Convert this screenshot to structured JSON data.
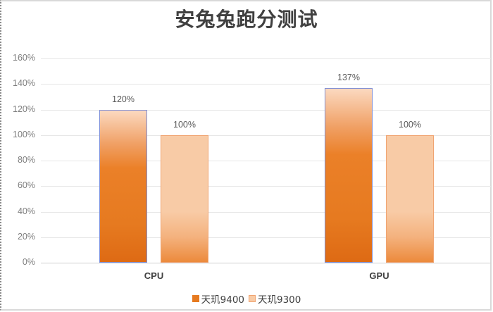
{
  "chart_data": {
    "type": "bar",
    "title": "安兔兔跑分测试",
    "categories": [
      "CPU",
      "GPU"
    ],
    "series": [
      {
        "name": "天玑9400",
        "values": [
          120,
          137
        ],
        "labels": [
          "120%",
          "137%"
        ],
        "color": "#E67A20"
      },
      {
        "name": "天玑9300",
        "values": [
          100,
          100
        ],
        "labels": [
          "100%",
          "100%"
        ],
        "color": "#F8CBA6"
      }
    ],
    "xlabel": "",
    "ylabel": "",
    "ylim": [
      0,
      160
    ],
    "yticks": [
      "0%",
      "20%",
      "40%",
      "60%",
      "80%",
      "100%",
      "120%",
      "140%",
      "160%"
    ],
    "grid": true,
    "legend_position": "bottom",
    "value_format": "percent"
  }
}
